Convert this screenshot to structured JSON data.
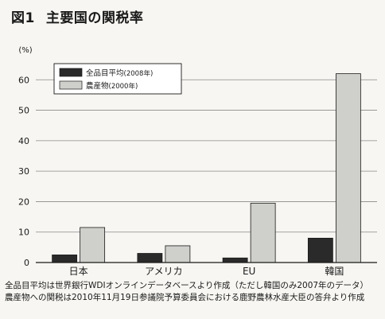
{
  "figure": {
    "number": "図1",
    "title": "主要国の関税率"
  },
  "chart_data": {
    "type": "bar",
    "categories": [
      "日本",
      "アメリカ",
      "EU",
      "韓国"
    ],
    "series": [
      {
        "name": "全品目平均",
        "period": "(2008年)",
        "values": [
          2.5,
          3.0,
          1.5,
          8.0
        ],
        "color": "#2a2a2a"
      },
      {
        "name": "農産物",
        "period": "(2000年)",
        "values": [
          11.5,
          5.5,
          19.5,
          62.0
        ],
        "color": "#cfcfcb"
      }
    ],
    "y_unit": "(%)",
    "yticks": [
      0,
      10,
      20,
      30,
      40,
      50,
      60
    ],
    "ylim": [
      0,
      70
    ],
    "grid": true,
    "legend_position": "top-left"
  },
  "notes": [
    "全品目平均は世界銀行WDIオンラインデータベースより作成（ただし韓国のみ2007年のデータ）",
    "農産物への関税は2010年11月19日参議院予算委員会における鹿野農林水産大臣の答弁より作成"
  ]
}
